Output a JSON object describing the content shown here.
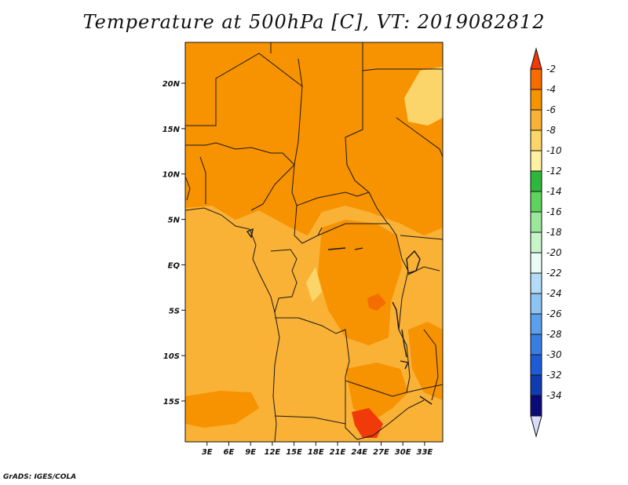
{
  "title": "Temperature at 500hPa [C], VT: 2019082812",
  "footer": "GrADS: IGES/COLA",
  "map": {
    "lat_ticks": [
      "20N",
      "15N",
      "10N",
      "5N",
      "EQ",
      "5S",
      "10S",
      "15S"
    ],
    "lon_ticks": [
      "3E",
      "6E",
      "9E",
      "12E",
      "15E",
      "18E",
      "21E",
      "24E",
      "27E",
      "30E",
      "33E"
    ],
    "lat_range": [
      -19.5,
      24.5
    ],
    "lon_range": [
      0,
      35.5
    ]
  },
  "colorbar": {
    "labels": [
      "-2",
      "-4",
      "-6",
      "-8",
      "-10",
      "-12",
      "-14",
      "-16",
      "-18",
      "-20",
      "-22",
      "-24",
      "-26",
      "-28",
      "-30",
      "-32",
      "-34"
    ],
    "colors": [
      "#f03a0a",
      "#f56c00",
      "#f79200",
      "#f9b136",
      "#fcd56a",
      "#fef0a0",
      "#2eb83a",
      "#5ed45e",
      "#9ae89a",
      "#c8f5c8",
      "#e8fbf4",
      "#b4dcf8",
      "#8ec4f4",
      "#5aa0ec",
      "#3a7ee4",
      "#1e5cd6",
      "#0f3cb0",
      "#0a0a78",
      "#d8dcf8"
    ]
  },
  "field_colors": {
    "t_minus_4_to_minus_2": "#f56c00",
    "t_minus_6_to_minus_4": "#f79200",
    "t_minus_8_to_minus_6": "#f9b136",
    "t_minus_10_to_minus_8": "#fcd56a"
  }
}
